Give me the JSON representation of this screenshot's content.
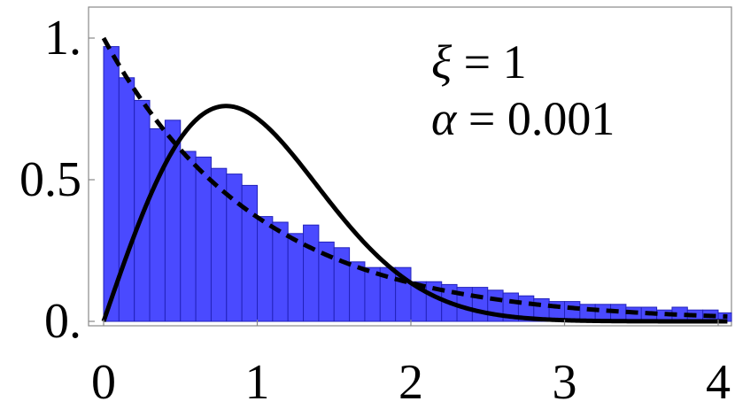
{
  "chart_data": {
    "type": "bar",
    "title": "",
    "xlabel": "",
    "ylabel": "",
    "xlim": [
      0,
      4.06
    ],
    "ylim": [
      0,
      1.08
    ],
    "x_ticks": [
      0,
      1,
      2,
      3,
      4
    ],
    "x_tick_labels": [
      "0",
      "1",
      "2",
      "3",
      "4"
    ],
    "y_ticks": [
      0,
      0.5,
      1
    ],
    "y_tick_labels": [
      "0.",
      "0.5",
      "1."
    ],
    "grid": false,
    "legend": null,
    "annotations": [
      {
        "var": "ξ",
        "eq": " = 1"
      },
      {
        "var": "α",
        "eq": " = 0.001"
      }
    ],
    "histogram": {
      "bin_width": 0.1,
      "bin_starts": [
        0.0,
        0.1,
        0.2,
        0.3,
        0.4,
        0.5,
        0.6,
        0.7,
        0.8,
        0.9,
        1.0,
        1.1,
        1.2,
        1.3,
        1.4,
        1.5,
        1.6,
        1.7,
        1.8,
        1.9,
        2.0,
        2.1,
        2.2,
        2.3,
        2.4,
        2.5,
        2.6,
        2.7,
        2.8,
        2.9,
        3.0,
        3.1,
        3.2,
        3.3,
        3.4,
        3.5,
        3.6,
        3.7,
        3.8,
        3.9,
        4.0
      ],
      "values": [
        0.97,
        0.86,
        0.78,
        0.68,
        0.71,
        0.6,
        0.58,
        0.54,
        0.52,
        0.48,
        0.37,
        0.35,
        0.31,
        0.34,
        0.28,
        0.26,
        0.21,
        0.19,
        0.19,
        0.19,
        0.14,
        0.14,
        0.13,
        0.12,
        0.12,
        0.11,
        0.1,
        0.09,
        0.08,
        0.07,
        0.07,
        0.06,
        0.06,
        0.06,
        0.05,
        0.05,
        0.04,
        0.05,
        0.04,
        0.04,
        0.03
      ],
      "color": "#4a4aff",
      "edge_color": "#2222bb"
    },
    "series": [
      {
        "style": "dashed",
        "color": "#000000",
        "function": "exp(-x)"
      },
      {
        "style": "solid",
        "color": "#000000",
        "function": "(pi/2) x exp(-pi x^2 / 4)"
      }
    ]
  }
}
